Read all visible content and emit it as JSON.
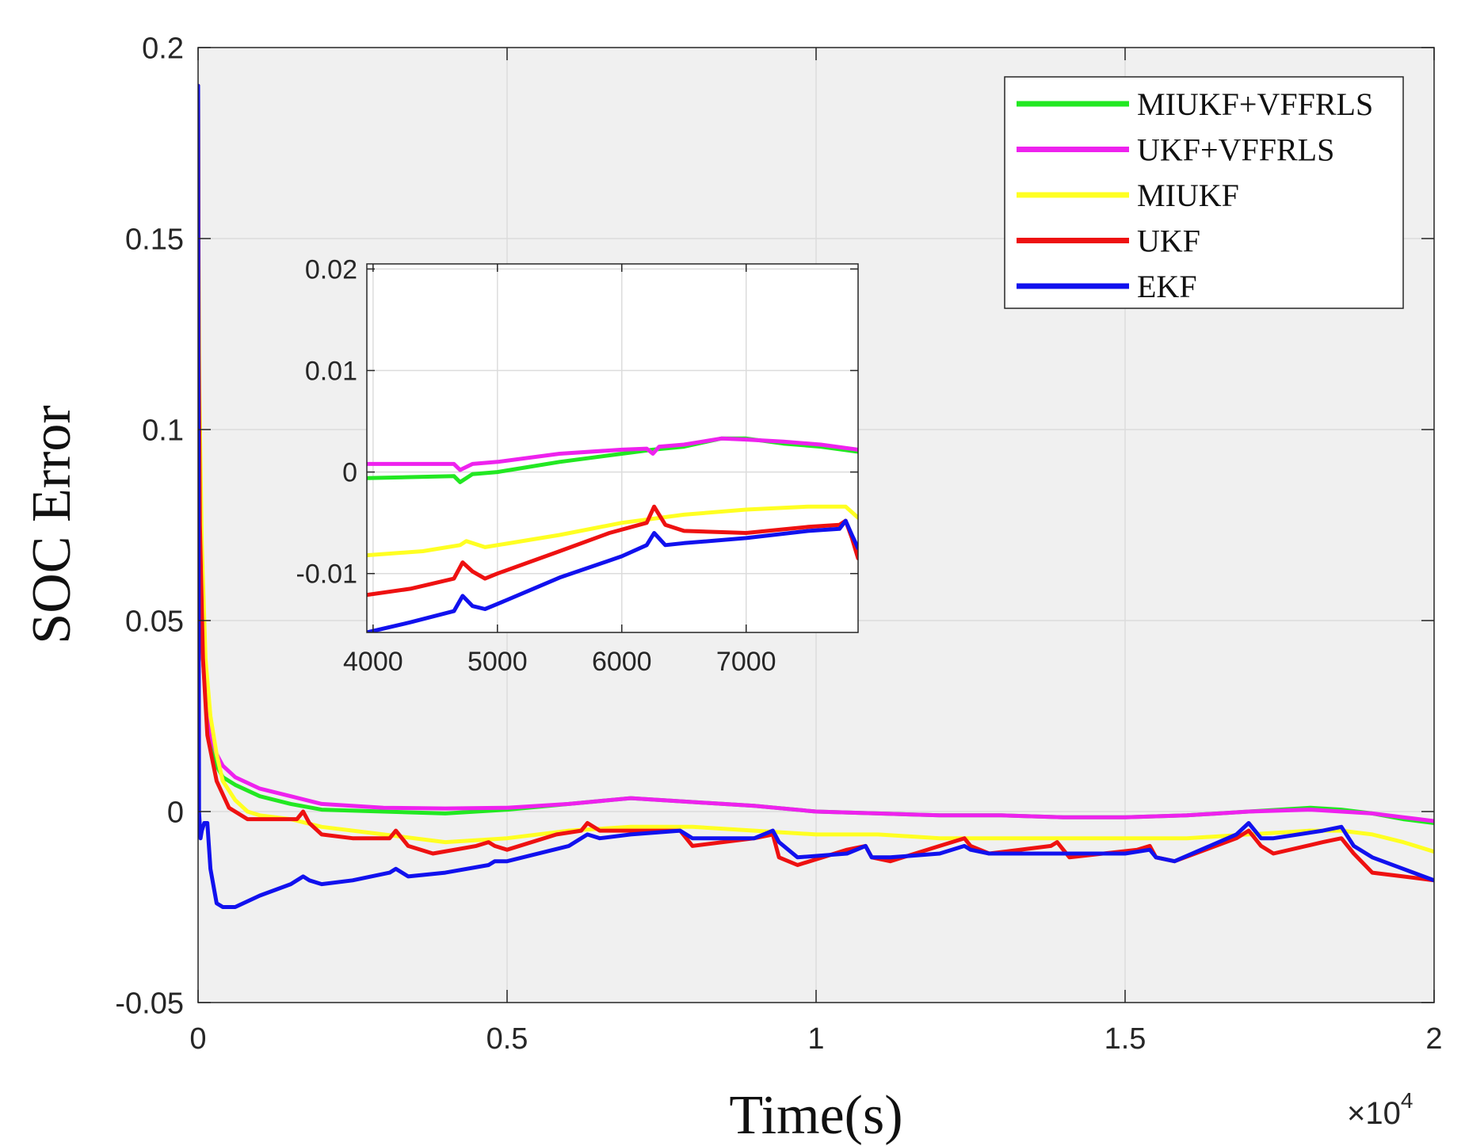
{
  "colors": {
    "MIUKF+VFFRLS": "#22e822",
    "UKF+VFFRLS": "#ee22ee",
    "MIUKF": "#ffff22",
    "UKF": "#ee1111",
    "EKF": "#1111ee",
    "plot_bg": "#f0f0f0",
    "grid": "#dcdcdc"
  },
  "chart_data": [
    {
      "id": "main",
      "type": "line",
      "title": "",
      "xlabel": "Time(s)",
      "ylabel": "SOC Error",
      "x_multiplier_label": "×10",
      "x_multiplier_exp": "4",
      "xlim": [
        0,
        20000
      ],
      "ylim": [
        -0.05,
        0.2
      ],
      "grid": true,
      "legend_position": "top-right",
      "xticks": [
        0,
        5000,
        10000,
        15000,
        20000
      ],
      "xtick_labels": [
        "0",
        "0.5",
        "1",
        "1.5",
        "2"
      ],
      "yticks": [
        -0.05,
        0,
        0.05,
        0.1,
        0.15,
        0.2
      ],
      "ytick_labels": [
        "-0.05",
        "0",
        "0.05",
        "0.1",
        "0.15",
        "0.2"
      ],
      "series": [
        {
          "name": "MIUKF+VFFRLS",
          "x": [
            0,
            5,
            20,
            60,
            120,
            200,
            300,
            400,
            600,
            1000,
            1500,
            2000,
            3000,
            4000,
            5000,
            6000,
            7000,
            8000,
            9000,
            10000,
            11000,
            12000,
            13000,
            14000,
            15000,
            16000,
            17000,
            18000,
            18500,
            19000,
            19500,
            20000
          ],
          "y": [
            0.19,
            0.13,
            0.08,
            0.045,
            0.03,
            0.02,
            0.012,
            0.009,
            0.007,
            0.004,
            0.002,
            0.0005,
            0.0,
            -0.0005,
            0.0005,
            0.002,
            0.0035,
            0.0025,
            0.0015,
            0.0,
            -0.0005,
            -0.001,
            -0.001,
            -0.0015,
            -0.0015,
            -0.001,
            0.0,
            0.001,
            0.0005,
            -0.0005,
            -0.002,
            -0.003
          ]
        },
        {
          "name": "UKF+VFFRLS",
          "x": [
            0,
            5,
            20,
            60,
            120,
            200,
            300,
            400,
            600,
            1000,
            1500,
            2000,
            3000,
            4000,
            5000,
            6000,
            7000,
            8000,
            9000,
            10000,
            11000,
            12000,
            13000,
            14000,
            15000,
            16000,
            17000,
            18000,
            18500,
            19000,
            19500,
            20000
          ],
          "y": [
            0.19,
            0.13,
            0.08,
            0.045,
            0.03,
            0.02,
            0.015,
            0.012,
            0.009,
            0.006,
            0.004,
            0.002,
            0.001,
            0.0008,
            0.001,
            0.002,
            0.0035,
            0.0025,
            0.0015,
            0.0,
            -0.0005,
            -0.001,
            -0.001,
            -0.0015,
            -0.0015,
            -0.001,
            0.0,
            0.0005,
            0.0,
            -0.0005,
            -0.0015,
            -0.0025
          ]
        },
        {
          "name": "MIUKF",
          "x": [
            0,
            5,
            20,
            60,
            120,
            200,
            300,
            400,
            600,
            800,
            1000,
            1500,
            2000,
            3000,
            4000,
            5000,
            6000,
            7000,
            8000,
            9000,
            10000,
            11000,
            12000,
            13000,
            14000,
            15000,
            16000,
            17000,
            18000,
            18500,
            19000,
            19500,
            20000
          ],
          "y": [
            0.19,
            0.15,
            0.11,
            0.07,
            0.04,
            0.025,
            0.015,
            0.008,
            0.003,
            0.0,
            -0.001,
            -0.002,
            -0.004,
            -0.006,
            -0.008,
            -0.007,
            -0.005,
            -0.004,
            -0.004,
            -0.005,
            -0.006,
            -0.006,
            -0.007,
            -0.007,
            -0.007,
            -0.007,
            -0.007,
            -0.006,
            -0.005,
            -0.005,
            -0.006,
            -0.008,
            -0.0105
          ]
        },
        {
          "name": "UKF",
          "x": [
            0,
            10,
            30,
            80,
            150,
            300,
            500,
            800,
            1200,
            1600,
            1700,
            1800,
            2000,
            2500,
            3100,
            3200,
            3400,
            3800,
            4500,
            4700,
            4800,
            5000,
            5800,
            6200,
            6300,
            6500,
            7000,
            7700,
            7800,
            8000,
            9000,
            9300,
            9400,
            9700,
            10500,
            10800,
            10900,
            11200,
            12000,
            12400,
            12500,
            12800,
            13800,
            13900,
            14100,
            15200,
            15400,
            15500,
            15800,
            16800,
            17000,
            17200,
            17400,
            18200,
            18500,
            18700,
            19000,
            19500,
            20000
          ],
          "y": [
            0.19,
            0.12,
            0.075,
            0.04,
            0.02,
            0.008,
            0.001,
            -0.002,
            -0.002,
            -0.002,
            0.0,
            -0.003,
            -0.006,
            -0.007,
            -0.007,
            -0.005,
            -0.009,
            -0.011,
            -0.009,
            -0.008,
            -0.009,
            -0.01,
            -0.006,
            -0.005,
            -0.003,
            -0.005,
            -0.005,
            -0.005,
            -0.005,
            -0.009,
            -0.007,
            -0.006,
            -0.012,
            -0.014,
            -0.01,
            -0.009,
            -0.012,
            -0.013,
            -0.009,
            -0.007,
            -0.009,
            -0.011,
            -0.009,
            -0.008,
            -0.012,
            -0.01,
            -0.009,
            -0.012,
            -0.013,
            -0.007,
            -0.005,
            -0.009,
            -0.011,
            -0.008,
            -0.007,
            -0.011,
            -0.016,
            -0.017,
            -0.018
          ]
        },
        {
          "name": "EKF",
          "x": [
            0,
            5,
            15,
            40,
            60,
            100,
            150,
            200,
            300,
            400,
            600,
            1000,
            1500,
            1700,
            1800,
            2000,
            2500,
            3100,
            3200,
            3400,
            4000,
            4700,
            4800,
            5000,
            6000,
            6300,
            6500,
            7000,
            7800,
            8000,
            9000,
            9300,
            9400,
            9700,
            10500,
            10800,
            10900,
            11200,
            12000,
            12400,
            12500,
            12800,
            13800,
            14000,
            15000,
            15400,
            15500,
            15800,
            16800,
            17000,
            17200,
            17400,
            18200,
            18500,
            18700,
            19000,
            19500,
            20000
          ],
          "y": [
            0.19,
            0.1,
            0.0,
            -0.007,
            -0.005,
            -0.003,
            -0.003,
            -0.015,
            -0.024,
            -0.025,
            -0.025,
            -0.022,
            -0.019,
            -0.017,
            -0.018,
            -0.019,
            -0.018,
            -0.016,
            -0.015,
            -0.017,
            -0.016,
            -0.014,
            -0.013,
            -0.013,
            -0.009,
            -0.006,
            -0.007,
            -0.006,
            -0.005,
            -0.007,
            -0.007,
            -0.005,
            -0.008,
            -0.012,
            -0.011,
            -0.009,
            -0.012,
            -0.012,
            -0.011,
            -0.009,
            -0.01,
            -0.011,
            -0.011,
            -0.011,
            -0.011,
            -0.01,
            -0.012,
            -0.013,
            -0.006,
            -0.003,
            -0.007,
            -0.007,
            -0.005,
            -0.004,
            -0.009,
            -0.012,
            -0.015,
            -0.018
          ]
        }
      ]
    },
    {
      "id": "inset",
      "type": "line",
      "title": "",
      "xlabel": "",
      "ylabel": "",
      "xlim": [
        3950,
        7900
      ],
      "ylim": [
        -0.0158,
        0.0205
      ],
      "grid": true,
      "xticks": [
        4000,
        5000,
        6000,
        7000
      ],
      "xtick_labels": [
        "4000",
        "5000",
        "6000",
        "7000"
      ],
      "yticks": [
        -0.01,
        0,
        0.01,
        0.02
      ],
      "ytick_labels": [
        "-0.01",
        "0",
        "0.01",
        "0.02"
      ],
      "series": [
        {
          "name": "MIUKF+VFFRLS",
          "x": [
            3950,
            4300,
            4650,
            4700,
            4800,
            5000,
            5500,
            6000,
            6250,
            6500,
            6800,
            7000,
            7300,
            7600,
            7900
          ],
          "y": [
            -0.0006,
            -0.0005,
            -0.0004,
            -0.001,
            -0.0002,
            0.0,
            0.001,
            0.0018,
            0.0022,
            0.0025,
            0.0033,
            0.0033,
            0.0028,
            0.0025,
            0.002
          ]
        },
        {
          "name": "UKF+VFFRLS",
          "x": [
            3950,
            4300,
            4650,
            4700,
            4800,
            5000,
            5500,
            6000,
            6200,
            6250,
            6300,
            6500,
            6800,
            7000,
            7300,
            7600,
            7900
          ],
          "y": [
            0.0008,
            0.0008,
            0.0008,
            0.0002,
            0.0008,
            0.001,
            0.0018,
            0.0022,
            0.0023,
            0.0018,
            0.0025,
            0.0027,
            0.0033,
            0.0032,
            0.003,
            0.0027,
            0.0022
          ]
        },
        {
          "name": "MIUKF",
          "x": [
            3950,
            4400,
            4700,
            4750,
            4900,
            5500,
            6000,
            6500,
            7000,
            7500,
            7800,
            7900
          ],
          "y": [
            -0.0082,
            -0.0078,
            -0.0072,
            -0.0068,
            -0.0074,
            -0.0062,
            -0.005,
            -0.0042,
            -0.0037,
            -0.0034,
            -0.0034,
            -0.0045
          ]
        },
        {
          "name": "UKF",
          "x": [
            3950,
            4300,
            4650,
            4720,
            4800,
            4900,
            5000,
            5500,
            5900,
            6200,
            6260,
            6350,
            6500,
            7000,
            7500,
            7750,
            7800,
            7850,
            7900
          ],
          "y": [
            -0.0121,
            -0.0115,
            -0.0105,
            -0.0089,
            -0.0098,
            -0.0105,
            -0.01,
            -0.0078,
            -0.006,
            -0.005,
            -0.0034,
            -0.0052,
            -0.0058,
            -0.006,
            -0.0054,
            -0.0052,
            -0.0048,
            -0.0065,
            -0.0085
          ]
        },
        {
          "name": "EKF",
          "x": [
            3950,
            4300,
            4650,
            4720,
            4800,
            4900,
            5000,
            5500,
            6000,
            6200,
            6260,
            6350,
            6500,
            7000,
            7500,
            7750,
            7800,
            7850,
            7900
          ],
          "y": [
            -0.0158,
            -0.0148,
            -0.0137,
            -0.0122,
            -0.0132,
            -0.0135,
            -0.013,
            -0.0104,
            -0.0083,
            -0.0072,
            -0.006,
            -0.0072,
            -0.007,
            -0.0065,
            -0.0058,
            -0.0056,
            -0.0048,
            -0.0062,
            -0.0075
          ]
        }
      ]
    }
  ]
}
